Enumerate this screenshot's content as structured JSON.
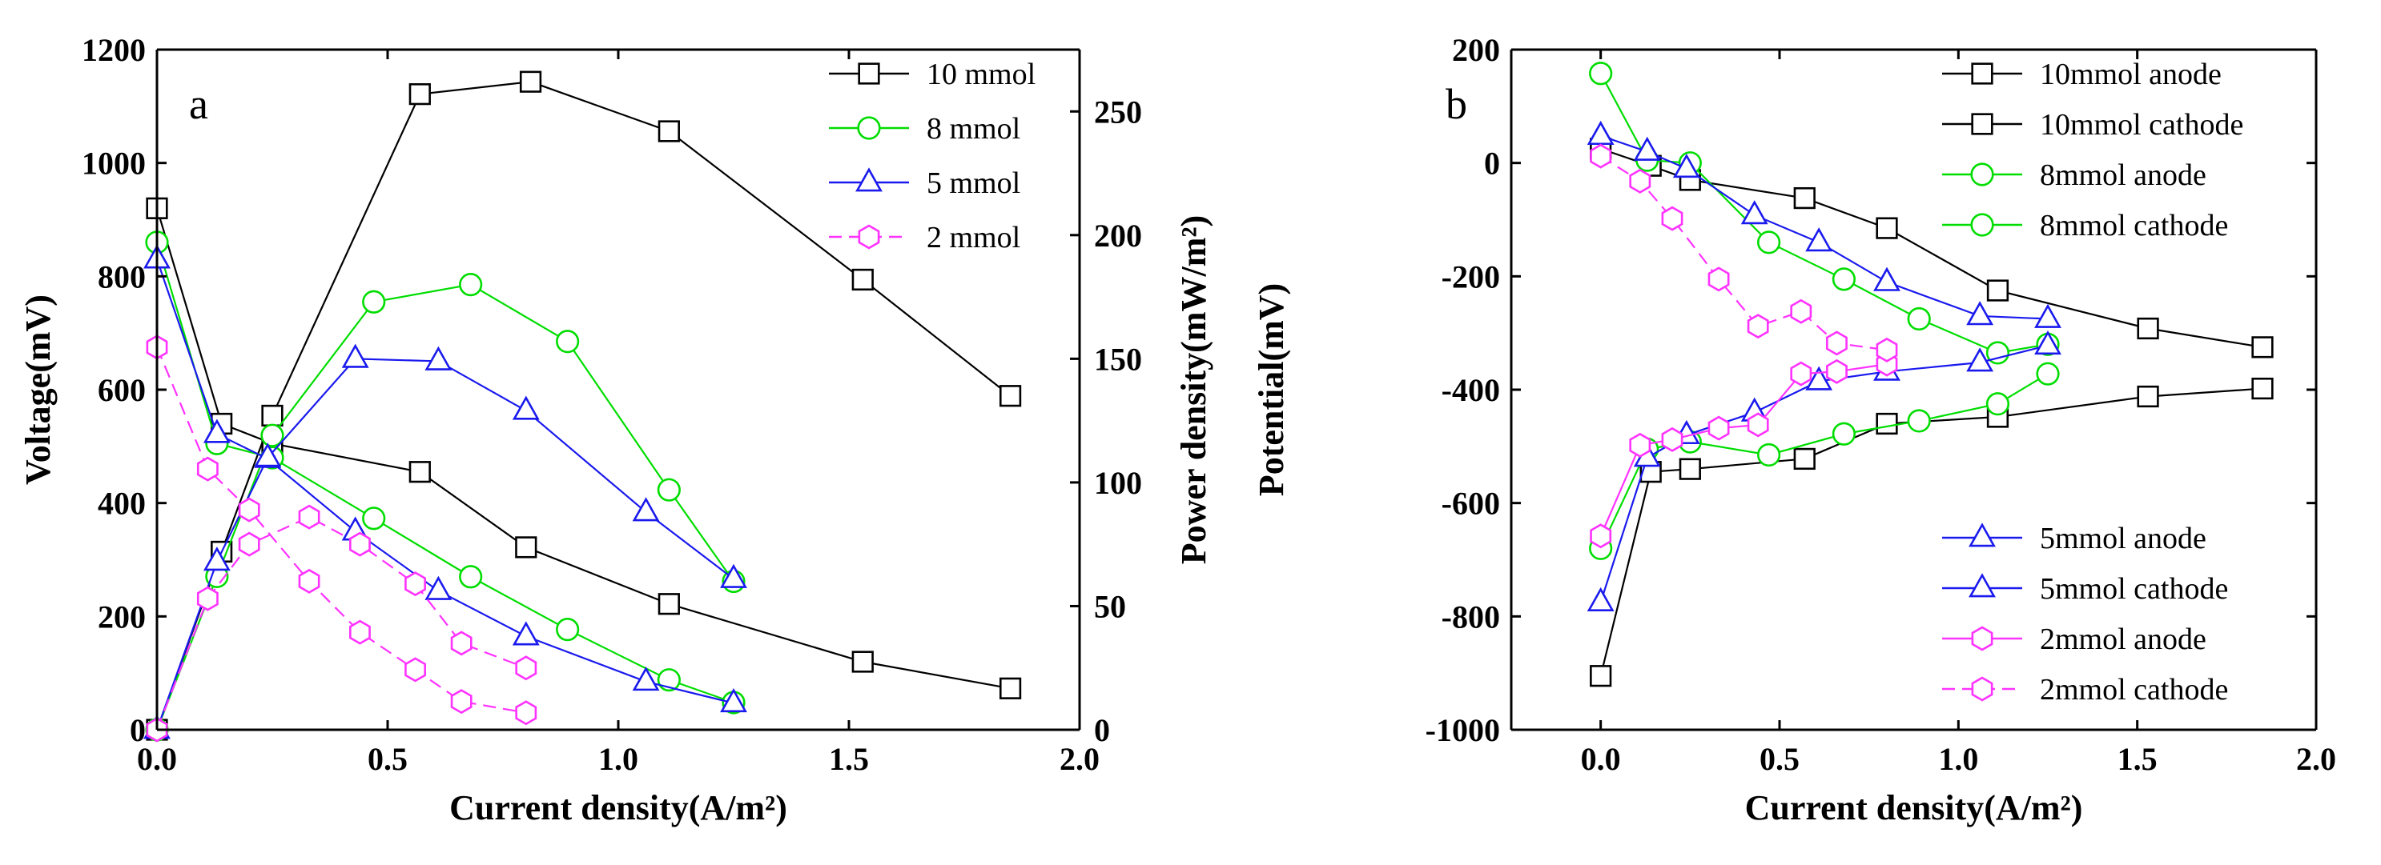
{
  "colors": {
    "10mmol": "#000000",
    "8mmol": "#00dd00",
    "5mmol": "#1a1aee",
    "2mmol": "#ff33ff"
  },
  "chart_data": [
    {
      "type": "line",
      "panel": "a",
      "xlabel": "Current density(A/m²)",
      "ylabel": "Voltage(mV)",
      "y2label": "Power density(mW/m²)",
      "xlim": [
        0.0,
        2.0
      ],
      "ylim": [
        0,
        1200
      ],
      "y2lim": [
        0,
        275
      ],
      "xticks": [
        "0.0",
        "0.5",
        "1.0",
        "1.5",
        "2.0"
      ],
      "yticks": [
        "0",
        "200",
        "400",
        "600",
        "800",
        "1000",
        "1200"
      ],
      "y2ticks": [
        "0",
        "50",
        "100",
        "150",
        "200",
        "250"
      ],
      "grid": false,
      "legend_position": "top-right",
      "legend": [
        {
          "label": "10 mmol",
          "marker": "square",
          "color_key": "10mmol"
        },
        {
          "label": "8 mmol",
          "marker": "circle",
          "color_key": "8mmol"
        },
        {
          "label": "5 mmol",
          "marker": "triangle",
          "color_key": "5mmol"
        },
        {
          "label": "2 mmol",
          "marker": "hexagon",
          "color_key": "2mmol"
        }
      ],
      "series": [
        {
          "legend_index": 0,
          "axis": "left",
          "group": "voltage",
          "x": [
            0.0,
            0.14,
            0.25,
            0.57,
            0.8,
            1.11,
            1.53,
            1.85
          ],
          "y": [
            920,
            540,
            505,
            455,
            322,
            222,
            120,
            73
          ]
        },
        {
          "legend_index": 0,
          "axis": "right",
          "group": "power",
          "x": [
            0.0,
            0.14,
            0.25,
            0.57,
            0.81,
            1.11,
            1.53,
            1.85
          ],
          "y": [
            0,
            72,
            127,
            257,
            262,
            242,
            182,
            135
          ]
        },
        {
          "legend_index": 1,
          "axis": "left",
          "group": "voltage",
          "x": [
            0.0,
            0.13,
            0.25,
            0.47,
            0.68,
            0.89,
            1.11,
            1.25
          ],
          "y": [
            860,
            505,
            480,
            373,
            270,
            177,
            88,
            48
          ]
        },
        {
          "legend_index": 1,
          "axis": "right",
          "group": "power",
          "x": [
            0.0,
            0.13,
            0.25,
            0.47,
            0.68,
            0.89,
            1.11,
            1.25
          ],
          "y": [
            0,
            62,
            119,
            173,
            180,
            157,
            97,
            60
          ]
        },
        {
          "legend_index": 2,
          "axis": "left",
          "group": "voltage",
          "x": [
            0.0,
            0.13,
            0.24,
            0.43,
            0.61,
            0.8,
            1.06,
            1.25
          ],
          "y": [
            830,
            522,
            478,
            350,
            245,
            165,
            85,
            47
          ]
        },
        {
          "legend_index": 2,
          "axis": "right",
          "group": "power",
          "x": [
            0.0,
            0.13,
            0.24,
            0.43,
            0.61,
            0.8,
            1.06,
            1.25
          ],
          "y": [
            0,
            68,
            110,
            150,
            149,
            129,
            88,
            61
          ]
        },
        {
          "legend_index": 3,
          "axis": "left",
          "group": "voltage",
          "x": [
            0.0,
            0.11,
            0.2,
            0.33,
            0.44,
            0.56,
            0.66,
            0.8
          ],
          "y": [
            675,
            460,
            388,
            262,
            172,
            106,
            50,
            30
          ]
        },
        {
          "legend_index": 3,
          "axis": "right",
          "group": "power",
          "x": [
            0.0,
            0.11,
            0.2,
            0.33,
            0.44,
            0.56,
            0.66,
            0.8
          ],
          "y": [
            0,
            53,
            75,
            86,
            75,
            59,
            35,
            25
          ]
        }
      ]
    },
    {
      "type": "line",
      "panel": "b",
      "xlabel": "Current density(A/m²)",
      "ylabel": "Potential(mV)",
      "xlim": [
        -0.25,
        2.0
      ],
      "ylim": [
        -1000,
        200
      ],
      "xticks": [
        "0.0",
        "0.5",
        "1.0",
        "1.5",
        "2.0"
      ],
      "yticks": [
        "-1000",
        "-800",
        "-600",
        "-400",
        "-200",
        "0",
        "200"
      ],
      "grid": false,
      "legend_position": "top-right and right side (two groups)",
      "legend": [
        {
          "label": "10mmol anode",
          "marker": "square",
          "color_key": "10mmol"
        },
        {
          "label": "10mmol cathode",
          "marker": "square",
          "color_key": "10mmol"
        },
        {
          "label": "8mmol anode",
          "marker": "circle",
          "color_key": "8mmol"
        },
        {
          "label": "8mmol cathode",
          "marker": "circle",
          "color_key": "8mmol"
        },
        {
          "label": "5mmol anode",
          "marker": "triangle",
          "color_key": "5mmol"
        },
        {
          "label": "5mmol cathode",
          "marker": "triangle",
          "color_key": "5mmol"
        },
        {
          "label": "2mmol anode",
          "marker": "hexagon",
          "color_key": "2mmol"
        },
        {
          "label": "2mmol cathode",
          "marker": "hexagon",
          "color_key": "2mmol"
        }
      ],
      "series": [
        {
          "legend_index": 0,
          "x": [
            0.0,
            0.14,
            0.25,
            0.57,
            0.8,
            1.11,
            1.53,
            1.85
          ],
          "y": [
            -905,
            -545,
            -540,
            -522,
            -460,
            -448,
            -412,
            -398
          ]
        },
        {
          "legend_index": 1,
          "x": [
            0.0,
            0.14,
            0.25,
            0.57,
            0.8,
            1.11,
            1.53,
            1.85
          ],
          "y": [
            25,
            -5,
            -30,
            -62,
            -115,
            -225,
            -292,
            -325
          ]
        },
        {
          "legend_index": 2,
          "x": [
            0.0,
            0.13,
            0.25,
            0.47,
            0.68,
            0.89,
            1.11,
            1.25
          ],
          "y": [
            -680,
            -505,
            -492,
            -515,
            -478,
            -455,
            -425,
            -372
          ]
        },
        {
          "legend_index": 3,
          "x": [
            0.0,
            0.13,
            0.25,
            0.47,
            0.68,
            0.89,
            1.11,
            1.25
          ],
          "y": [
            158,
            5,
            0,
            -140,
            -205,
            -275,
            -335,
            -320
          ]
        },
        {
          "legend_index": 4,
          "x": [
            0.0,
            0.13,
            0.24,
            0.43,
            0.61,
            0.8,
            1.06,
            1.25
          ],
          "y": [
            -775,
            -520,
            -480,
            -440,
            -385,
            -368,
            -352,
            -322
          ]
        },
        {
          "legend_index": 5,
          "x": [
            0.0,
            0.13,
            0.24,
            0.43,
            0.61,
            0.8,
            1.06,
            1.25
          ],
          "y": [
            48,
            20,
            -10,
            -92,
            -140,
            -210,
            -270,
            -275
          ]
        },
        {
          "legend_index": 6,
          "x": [
            0.0,
            0.11,
            0.2,
            0.33,
            0.44,
            0.56,
            0.66,
            0.8
          ],
          "y": [
            -658,
            -498,
            -488,
            -468,
            -462,
            -372,
            -368,
            -355
          ]
        },
        {
          "legend_index": 7,
          "x": [
            0.0,
            0.11,
            0.2,
            0.33,
            0.44,
            0.56,
            0.66,
            0.8
          ],
          "y": [
            12,
            -32,
            -98,
            -205,
            -288,
            -262,
            -318,
            -330
          ]
        }
      ]
    }
  ]
}
